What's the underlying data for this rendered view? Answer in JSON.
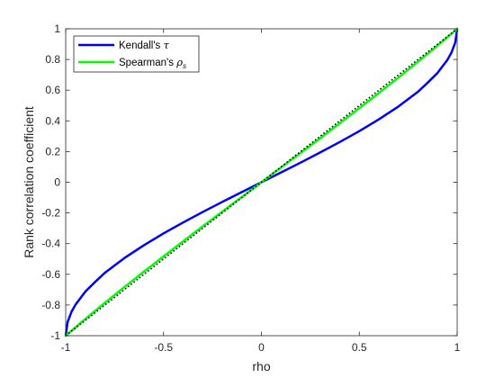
{
  "chart_data": {
    "type": "line",
    "xlabel": "rho",
    "ylabel": "Rank correlation coefficient",
    "xlim": [
      -1,
      1
    ],
    "ylim": [
      -1,
      1
    ],
    "xticks": [
      -1,
      -0.5,
      0,
      0.5,
      1
    ],
    "xtick_labels": [
      "-1",
      "-0.5",
      "0",
      "0.5",
      "1"
    ],
    "yticks": [
      -1,
      -0.8,
      -0.6,
      -0.4,
      -0.2,
      0,
      0.2,
      0.4,
      0.6,
      0.8,
      1
    ],
    "ytick_labels": [
      "-1",
      "-0.8",
      "-0.6",
      "-0.4",
      "-0.2",
      "0",
      "0.2",
      "0.4",
      "0.6",
      "0.8",
      "1"
    ],
    "grid": false,
    "legend_position": "top-left",
    "series": [
      {
        "name": "Kendall's τ",
        "legend_main": "Kendall's ",
        "legend_symbol": "τ",
        "legend_sub": "",
        "color": "#0000ff",
        "x": [
          -1,
          -0.99,
          -0.97,
          -0.95,
          -0.9,
          -0.85,
          -0.8,
          -0.7,
          -0.6,
          -0.5,
          -0.4,
          -0.3,
          -0.2,
          -0.1,
          0,
          0.1,
          0.2,
          0.3,
          0.4,
          0.5,
          0.6,
          0.7,
          0.8,
          0.85,
          0.9,
          0.95,
          0.97,
          0.99,
          1
        ],
        "y": [
          -1,
          -0.91,
          -0.843,
          -0.798,
          -0.713,
          -0.65,
          -0.59,
          -0.494,
          -0.41,
          -0.333,
          -0.262,
          -0.194,
          -0.128,
          -0.064,
          0,
          0.064,
          0.128,
          0.194,
          0.262,
          0.333,
          0.41,
          0.494,
          0.59,
          0.65,
          0.713,
          0.798,
          0.843,
          0.91,
          1
        ]
      },
      {
        "name": "Spearman's ρs",
        "legend_main": "Spearman's ",
        "legend_symbol": "ρ",
        "legend_sub": "s",
        "color": "#00ff00",
        "x": [
          -1,
          -0.9,
          -0.8,
          -0.7,
          -0.6,
          -0.5,
          -0.4,
          -0.3,
          -0.2,
          -0.1,
          0,
          0.1,
          0.2,
          0.3,
          0.4,
          0.5,
          0.6,
          0.7,
          0.8,
          0.9,
          1
        ],
        "y": [
          -1,
          -0.891,
          -0.786,
          -0.683,
          -0.582,
          -0.483,
          -0.385,
          -0.287,
          -0.191,
          -0.096,
          0,
          0.096,
          0.191,
          0.287,
          0.385,
          0.483,
          0.582,
          0.683,
          0.786,
          0.891,
          1
        ]
      },
      {
        "color": "#000000",
        "style": "dotted",
        "x": [
          -1,
          1
        ],
        "y": [
          -1,
          1
        ]
      }
    ]
  }
}
